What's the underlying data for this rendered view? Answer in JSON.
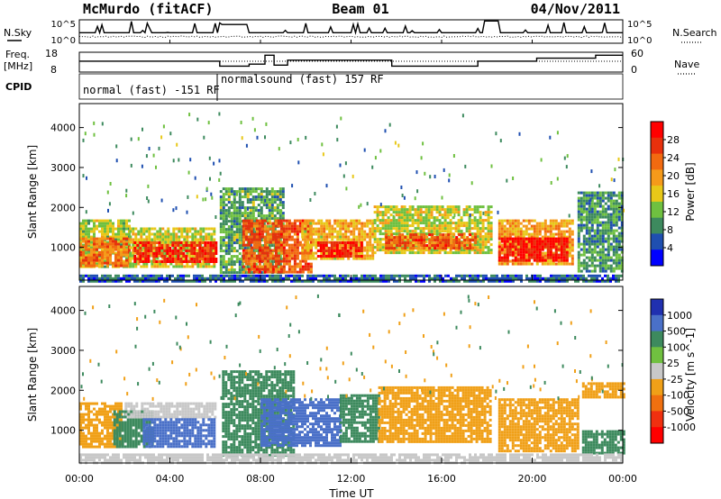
{
  "header": {
    "station": "McMurdo (fitACF)",
    "beam": "Beam 01",
    "date": "04/Nov/2011"
  },
  "status_panels": {
    "nsky_label": "N.Sky",
    "nsky_ticks": [
      "10^5",
      "10^0"
    ],
    "nsearch_label": "N.Search",
    "nsearch_ticks": [
      "10^5",
      "10^0"
    ],
    "freq_label": "Freq.",
    "freq_unit": "[MHz]",
    "freq_ticks": [
      "18",
      "8"
    ],
    "nave_label": "Nave",
    "nave_ticks": [
      "60",
      "0"
    ],
    "cpid_label": "CPID",
    "cpid_segments": [
      {
        "label": "normal (fast) -151 RF",
        "start_hour": 0,
        "end_hour": 6.2
      },
      {
        "label": "normalsound (fast) 157 RF",
        "start_hour": 6.2,
        "end_hour": 24
      }
    ]
  },
  "colors": {
    "power_scale": [
      "#0000ff",
      "#1f4fb0",
      "#3d8a5e",
      "#6fc040",
      "#e8c818",
      "#f59a1a",
      "#f26a10",
      "#e8300c",
      "#ff0000"
    ],
    "velocity_scale": [
      "#2030b0",
      "#4a70c8",
      "#3d8a5e",
      "#70c040",
      "#c8c8c8",
      "#f0a018",
      "#f07010",
      "#f03010",
      "#ff0000"
    ]
  },
  "chart_data": [
    {
      "type": "heatmap",
      "name": "Power",
      "xlabel": "Time UT",
      "ylabel": "Slant Range [km]",
      "xlim": [
        0,
        24
      ],
      "ylim": [
        180,
        4600
      ],
      "x_ticks": [
        "00:00",
        "04:00",
        "08:00",
        "12:00",
        "16:00",
        "20:00",
        "00:00"
      ],
      "y_ticks": [
        1000,
        2000,
        3000,
        4000
      ],
      "colorbar": {
        "label": "Power [dB]",
        "ticks": [
          4,
          8,
          12,
          16,
          20,
          24,
          28
        ],
        "range": [
          0,
          30
        ]
      },
      "regions": [
        {
          "t0": 0.0,
          "t1": 2.2,
          "r0": 500,
          "r1": 1700,
          "value": 13
        },
        {
          "t0": 0.0,
          "t1": 2.2,
          "r0": 560,
          "r1": 1250,
          "value": 21
        },
        {
          "t0": 2.2,
          "t1": 6.0,
          "r0": 550,
          "r1": 1500,
          "value": 14
        },
        {
          "t0": 2.4,
          "t1": 6.0,
          "r0": 620,
          "r1": 1150,
          "value": 26
        },
        {
          "t0": 6.2,
          "t1": 9.0,
          "r0": 400,
          "r1": 2500,
          "value": 10
        },
        {
          "t0": 7.2,
          "t1": 10.2,
          "r0": 400,
          "r1": 1700,
          "value": 23
        },
        {
          "t0": 9.8,
          "t1": 13.0,
          "r0": 700,
          "r1": 1700,
          "value": 17
        },
        {
          "t0": 10.5,
          "t1": 12.5,
          "r0": 800,
          "r1": 1150,
          "value": 27
        },
        {
          "t0": 13.0,
          "t1": 18.2,
          "r0": 850,
          "r1": 2050,
          "value": 14
        },
        {
          "t0": 13.5,
          "t1": 17.5,
          "r0": 950,
          "r1": 1350,
          "value": 23
        },
        {
          "t0": 18.5,
          "t1": 21.8,
          "r0": 600,
          "r1": 1700,
          "value": 18
        },
        {
          "t0": 18.5,
          "t1": 21.6,
          "r0": 650,
          "r1": 1250,
          "value": 28
        },
        {
          "t0": 22.0,
          "t1": 24.0,
          "r0": 400,
          "r1": 2400,
          "value": 9
        },
        {
          "t0": 0.0,
          "t1": 24.0,
          "r0": 180,
          "r1": 320,
          "value": 6
        }
      ]
    },
    {
      "type": "heatmap",
      "name": "Velocity",
      "xlabel": "Time UT",
      "ylabel": "Slant Range [km]",
      "xlim": [
        0,
        24
      ],
      "ylim": [
        180,
        4600
      ],
      "x_ticks": [
        "00:00",
        "04:00",
        "08:00",
        "12:00",
        "16:00",
        "20:00",
        "00:00"
      ],
      "y_ticks": [
        1000,
        2000,
        3000,
        4000
      ],
      "colorbar": {
        "label": "Velocity [m s^-1]",
        "ticks": [
          "1000",
          "500",
          "100",
          "25",
          "-25",
          "-100",
          "-500",
          "-1000"
        ]
      },
      "regions": [
        {
          "t0": 0.0,
          "t1": 1.8,
          "r0": 600,
          "r1": 1700,
          "value": -100
        },
        {
          "t0": 1.5,
          "t1": 3.2,
          "r0": 600,
          "r1": 1500,
          "value": 100
        },
        {
          "t0": 2.0,
          "t1": 6.0,
          "r0": 1300,
          "r1": 1700,
          "value": 25
        },
        {
          "t0": 2.8,
          "t1": 6.0,
          "r0": 600,
          "r1": 1300,
          "value": 500
        },
        {
          "t0": 6.3,
          "t1": 9.5,
          "r0": 400,
          "r1": 2500,
          "value": 100
        },
        {
          "t0": 8.0,
          "t1": 11.5,
          "r0": 600,
          "r1": 1800,
          "value": 500
        },
        {
          "t0": 11.5,
          "t1": 13.2,
          "r0": 700,
          "r1": 1900,
          "value": 100
        },
        {
          "t0": 13.2,
          "t1": 18.2,
          "r0": 700,
          "r1": 2100,
          "value": -100
        },
        {
          "t0": 18.5,
          "t1": 22.0,
          "r0": 500,
          "r1": 1800,
          "value": -100
        },
        {
          "t0": 22.2,
          "t1": 24.0,
          "r0": 1800,
          "r1": 2200,
          "value": -100
        },
        {
          "t0": 22.2,
          "t1": 24.0,
          "r0": 400,
          "r1": 1000,
          "value": 100
        },
        {
          "t0": 0.0,
          "t1": 24.0,
          "r0": 180,
          "r1": 420,
          "value": 25
        }
      ]
    }
  ]
}
